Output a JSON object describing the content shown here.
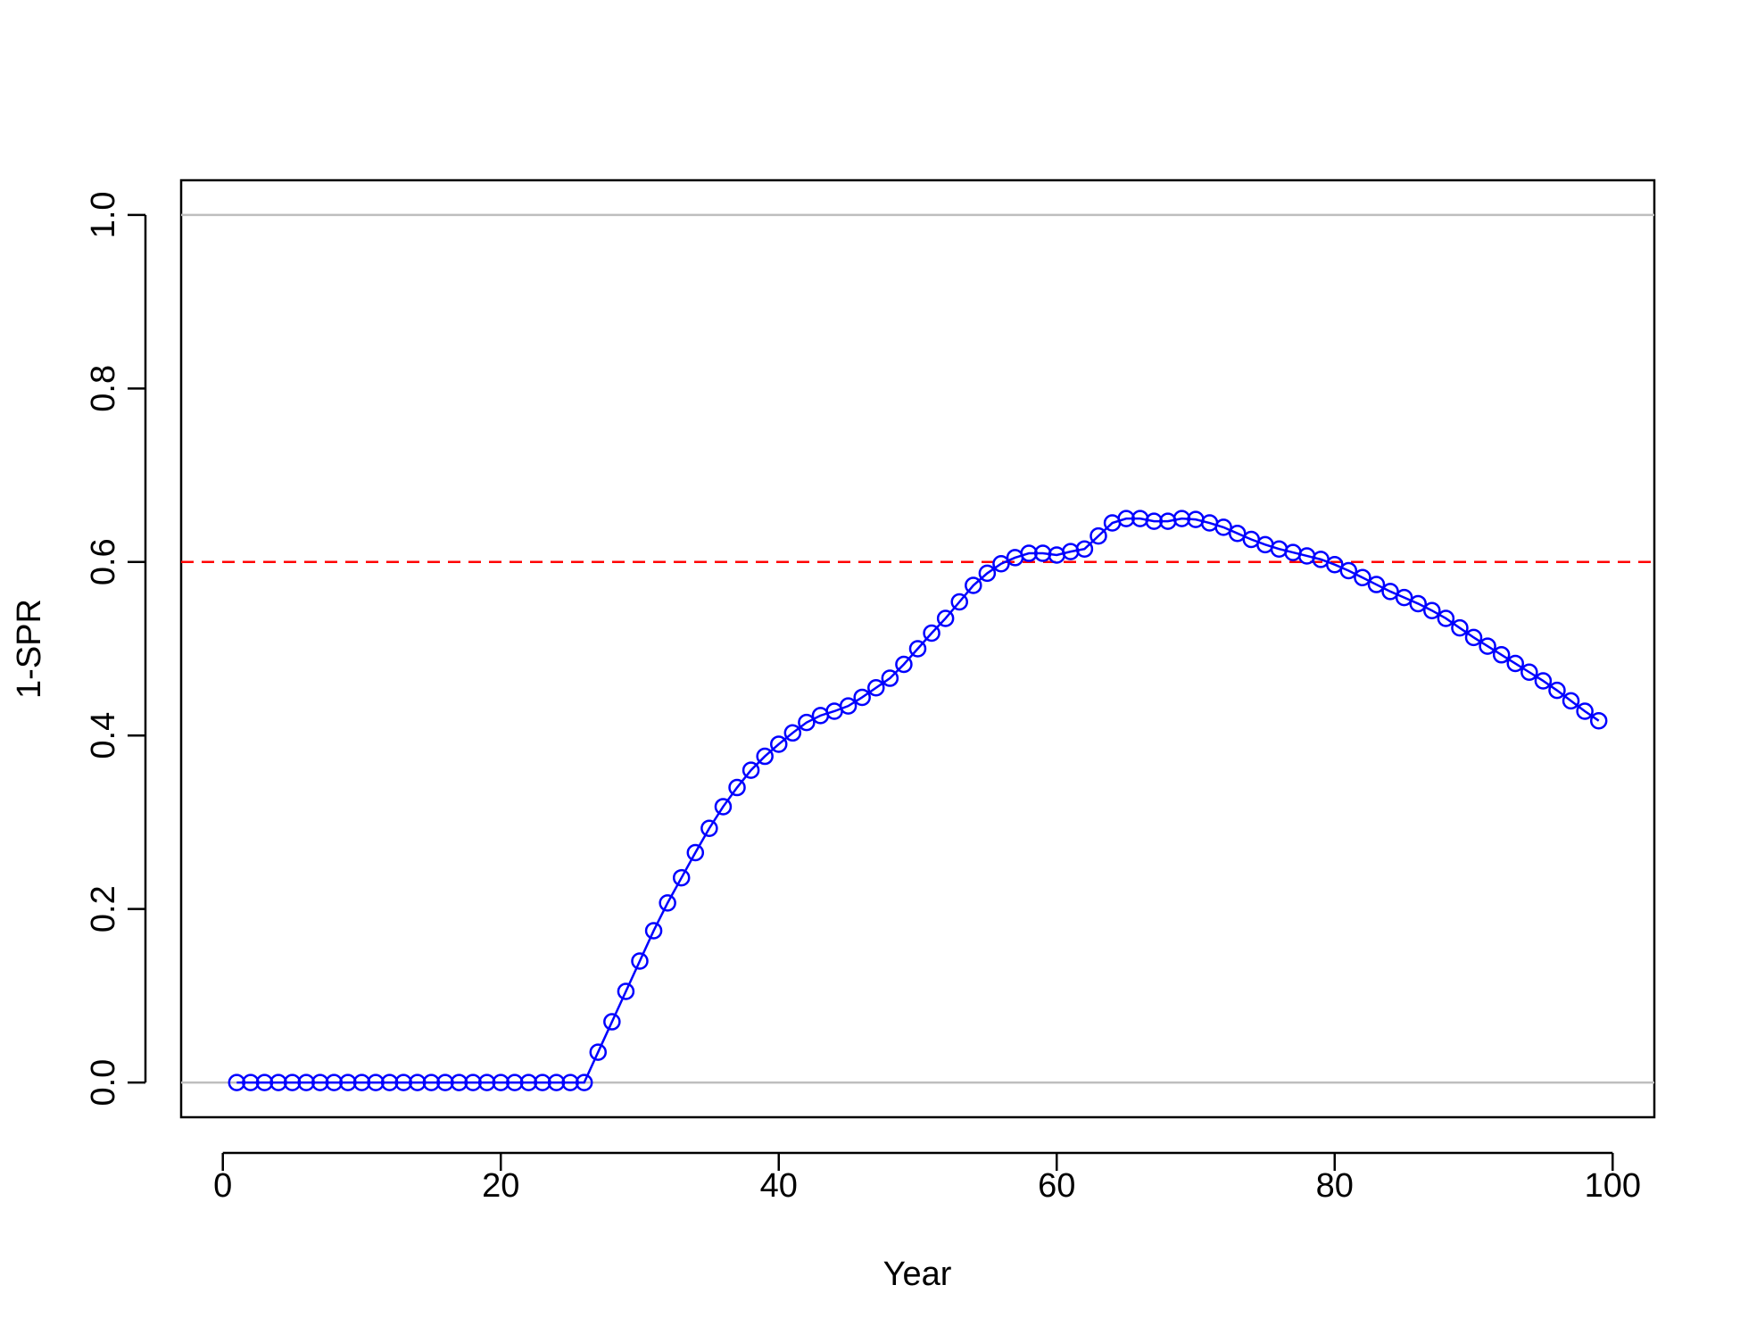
{
  "chart_data": {
    "type": "line",
    "title": "",
    "xlabel": "Year",
    "ylabel": "1-SPR",
    "xlim": [
      -3,
      103
    ],
    "ylim": [
      -0.04,
      1.04
    ],
    "xticks": [
      0,
      20,
      40,
      60,
      80,
      100
    ],
    "xtick_labels": [
      "0",
      "20",
      "40",
      "60",
      "80",
      "100"
    ],
    "yticks": [
      0.0,
      0.2,
      0.4,
      0.6,
      0.8,
      1.0
    ],
    "ytick_labels": [
      "0.0",
      "0.2",
      "0.4",
      "0.6",
      "0.8",
      "1.0"
    ],
    "grid": false,
    "legend": "none",
    "reference_lines": [
      {
        "y": 0.0,
        "color": "#bebebe",
        "style": "solid"
      },
      {
        "y": 1.0,
        "color": "#bebebe",
        "style": "solid"
      },
      {
        "y": 0.6,
        "color": "#ff0000",
        "style": "dashed"
      }
    ],
    "series": [
      {
        "color": "#0000ff",
        "marker": "open-circle",
        "x": [
          1,
          2,
          3,
          4,
          5,
          6,
          7,
          8,
          9,
          10,
          11,
          12,
          13,
          14,
          15,
          16,
          17,
          18,
          19,
          20,
          21,
          22,
          23,
          24,
          25,
          26,
          27,
          28,
          29,
          30,
          31,
          32,
          33,
          34,
          35,
          36,
          37,
          38,
          39,
          40,
          41,
          42,
          43,
          44,
          45,
          46,
          47,
          48,
          49,
          50,
          51,
          52,
          53,
          54,
          55,
          56,
          57,
          58,
          59,
          60,
          61,
          62,
          63,
          64,
          65,
          66,
          67,
          68,
          69,
          70,
          71,
          72,
          73,
          74,
          75,
          76,
          77,
          78,
          79,
          80,
          81,
          82,
          83,
          84,
          85,
          86,
          87,
          88,
          89,
          90,
          91,
          92,
          93,
          94,
          95,
          96,
          97,
          98,
          99
        ],
        "values": [
          0,
          0,
          0,
          0,
          0,
          0,
          0,
          0,
          0,
          0,
          0,
          0,
          0,
          0,
          0,
          0,
          0,
          0,
          0,
          0,
          0,
          0,
          0,
          0,
          0,
          0,
          0.035,
          0.07,
          0.105,
          0.14,
          0.175,
          0.207,
          0.236,
          0.265,
          0.293,
          0.318,
          0.34,
          0.36,
          0.376,
          0.39,
          0.403,
          0.415,
          0.423,
          0.428,
          0.434,
          0.444,
          0.455,
          0.466,
          0.482,
          0.5,
          0.518,
          0.535,
          0.554,
          0.573,
          0.587,
          0.598,
          0.605,
          0.61,
          0.61,
          0.608,
          0.612,
          0.615,
          0.63,
          0.645,
          0.65,
          0.65,
          0.647,
          0.647,
          0.65,
          0.649,
          0.645,
          0.64,
          0.633,
          0.626,
          0.62,
          0.615,
          0.611,
          0.607,
          0.603,
          0.597,
          0.59,
          0.582,
          0.574,
          0.566,
          0.559,
          0.552,
          0.544,
          0.535,
          0.524,
          0.513,
          0.503,
          0.493,
          0.483,
          0.473,
          0.463,
          0.452,
          0.44,
          0.428,
          0.417
        ]
      }
    ]
  }
}
